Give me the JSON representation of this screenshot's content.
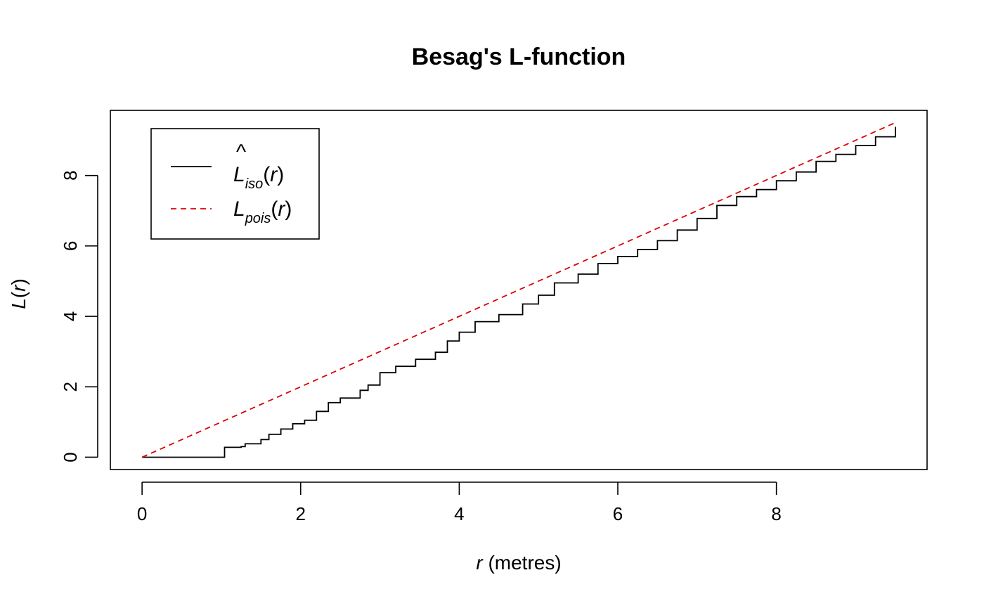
{
  "chart_data": {
    "type": "line",
    "title": "Besag's L-function",
    "xlabel": {
      "var": "r",
      "unit": "(metres)"
    },
    "ylabel": {
      "fn": "L",
      "open": "(",
      "var": "r",
      "close": ")"
    },
    "xlim": [
      -0.4,
      9.9
    ],
    "ylim": [
      -0.35,
      9.85
    ],
    "xticks": [
      0,
      2,
      4,
      6,
      8
    ],
    "yticks": [
      0,
      2,
      4,
      6,
      8
    ],
    "grid": false,
    "legend": {
      "position": "top-left",
      "entries": [
        {
          "base": "L",
          "hat": "^",
          "sub": "iso",
          "open": "(",
          "var": "r",
          "close": ")"
        },
        {
          "base": "L",
          "hat": "",
          "sub": "pois",
          "open": "(",
          "var": "r",
          "close": ")"
        }
      ]
    },
    "series": [
      {
        "key": "iso",
        "color": "#000000",
        "dash": "solid",
        "x": [
          0,
          1.04,
          1.04,
          1.25,
          1.3,
          1.5,
          1.6,
          1.75,
          1.9,
          2.05,
          2.2,
          2.35,
          2.5,
          2.75,
          2.85,
          3.0,
          3.2,
          3.45,
          3.7,
          3.85,
          4.0,
          4.2,
          4.5,
          4.8,
          5.0,
          5.2,
          5.5,
          5.75,
          6.0,
          6.25,
          6.5,
          6.75,
          7.0,
          7.25,
          7.5,
          7.75,
          8.0,
          8.25,
          8.5,
          8.75,
          9.0,
          9.25,
          9.5
        ],
        "y": [
          0,
          0,
          0.28,
          0.3,
          0.38,
          0.5,
          0.65,
          0.8,
          0.95,
          1.05,
          1.3,
          1.55,
          1.68,
          1.9,
          2.05,
          2.4,
          2.58,
          2.78,
          2.98,
          3.3,
          3.55,
          3.85,
          4.05,
          4.35,
          4.6,
          4.95,
          5.2,
          5.5,
          5.7,
          5.9,
          6.15,
          6.45,
          6.78,
          7.15,
          7.4,
          7.6,
          7.85,
          8.1,
          8.4,
          8.6,
          8.85,
          9.1,
          9.38
        ]
      },
      {
        "key": "pois",
        "color": "#dd0000",
        "dash": "dashed",
        "x": [
          0,
          9.5
        ],
        "y": [
          0,
          9.5
        ]
      }
    ]
  }
}
